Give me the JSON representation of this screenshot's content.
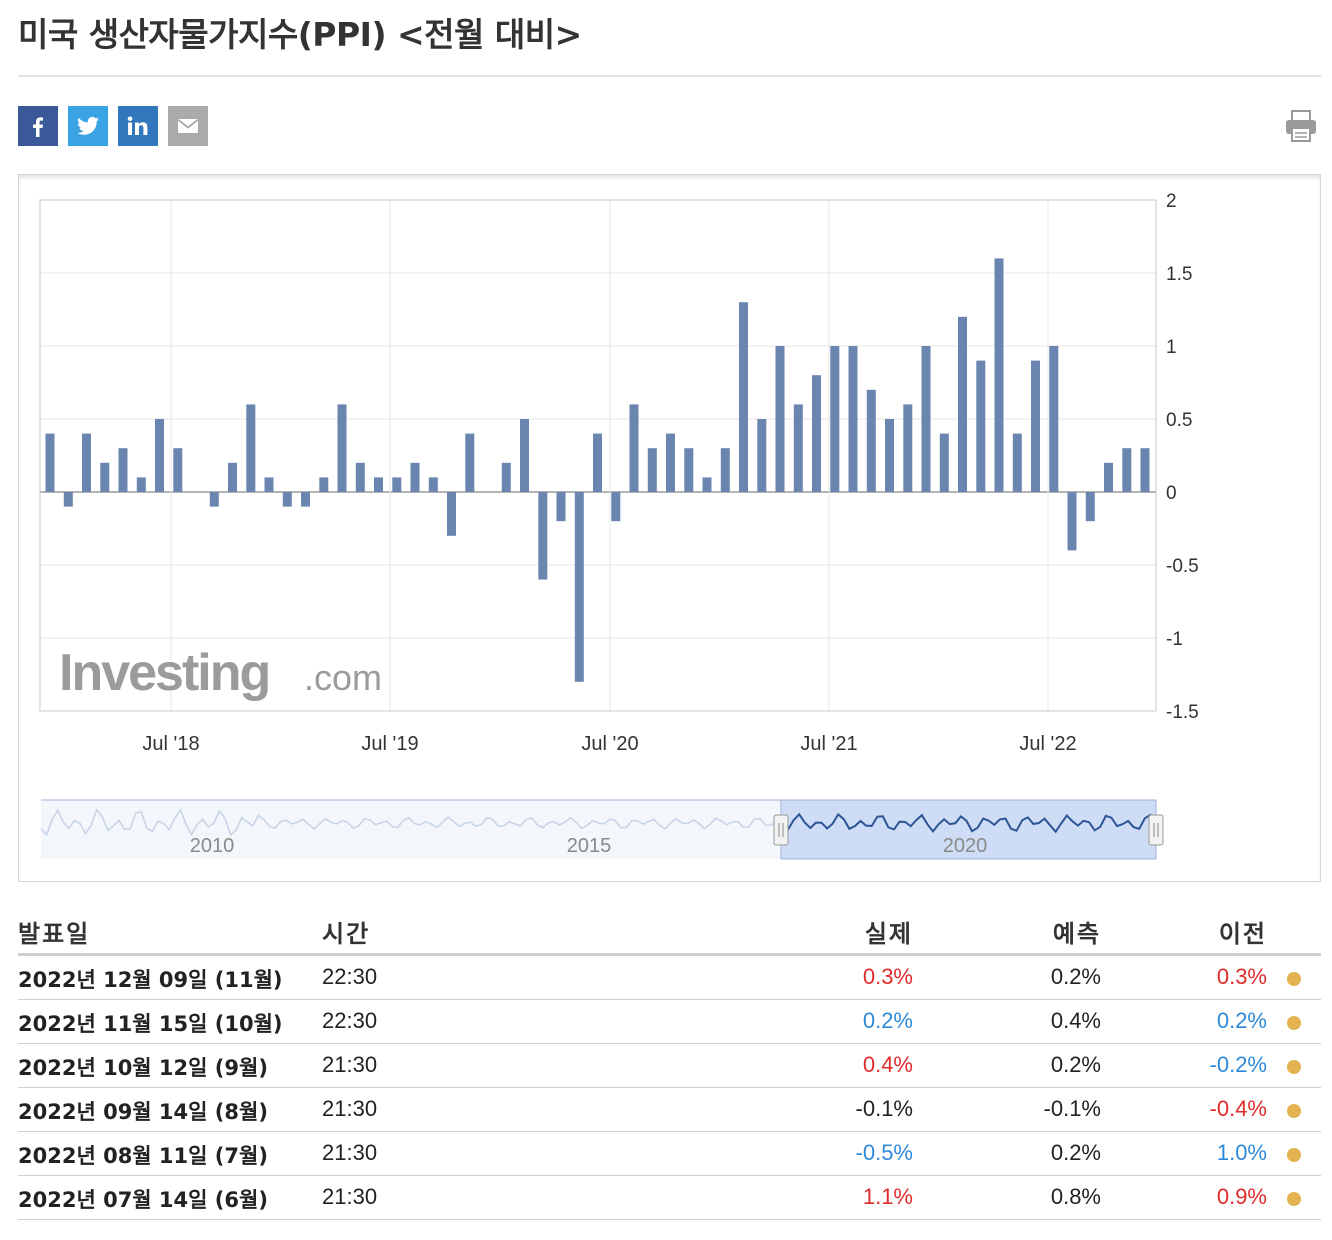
{
  "page": {
    "title": "미국 생산자물가지수(PPI) <전월 대비>"
  },
  "share": [
    {
      "name": "facebook",
      "glyph": "f",
      "color": "#3b5998",
      "icon": "facebook-icon"
    },
    {
      "name": "twitter",
      "glyph": "t",
      "color": "#3aa3e3",
      "icon": "twitter-icon"
    },
    {
      "name": "linkedin",
      "glyph": "in",
      "color": "#3277bc",
      "icon": "linkedin-icon"
    },
    {
      "name": "email",
      "glyph": "✉",
      "color": "#aaaaaa",
      "icon": "email-icon"
    }
  ],
  "print": {
    "icon": "printer-icon"
  },
  "chart": {
    "watermark": {
      "main": "Investing",
      "suffix": ".com"
    },
    "navigator_labels": [
      "2010",
      "2015",
      "2020"
    ]
  },
  "chart_data": {
    "type": "bar",
    "x_tick_labels": [
      "Jul '18",
      "Jul '19",
      "Jul '20",
      "Jul '21",
      "Jul '22"
    ],
    "y_tick_labels": [
      "2",
      "1.5",
      "1",
      "0.5",
      "0",
      "-0.5",
      "-1",
      "-1.5"
    ],
    "ylim": [
      -1.5,
      2
    ],
    "y_axis_position": "right",
    "grid": true,
    "bar_color": "#6a85af",
    "series": [
      {
        "values": [
          0.4,
          -0.1,
          0.4,
          0.2,
          0.3,
          0.1,
          0.5,
          0.3,
          0.0,
          -0.1,
          0.2,
          0.6,
          0.1,
          -0.1,
          -0.1,
          0.1,
          0.6,
          0.2,
          0.1,
          0.1,
          0.2,
          0.1,
          -0.3,
          0.4,
          0.0,
          0.2,
          0.5,
          -0.6,
          -0.2,
          -1.3,
          0.4,
          -0.2,
          0.6,
          0.3,
          0.4,
          0.3,
          0.1,
          0.3,
          1.3,
          0.5,
          1.0,
          0.6,
          0.8,
          1.0,
          1.0,
          0.7,
          0.5,
          0.6,
          1.0,
          0.4,
          1.2,
          0.9,
          1.6,
          0.4,
          0.9,
          1.0,
          -0.4,
          -0.2,
          0.2,
          0.3,
          0.3
        ]
      }
    ],
    "navigator": {
      "selected_range_labels": [
        "2020"
      ]
    }
  },
  "table": {
    "headers": {
      "date": "발표일",
      "time": "시간",
      "actual": "실제",
      "forecast": "예측",
      "previous": "이전"
    },
    "rows": [
      {
        "date": "2022년 12월 09일 (11월)",
        "time": "22:30",
        "actual": "0.3%",
        "actual_dir": "up",
        "forecast": "0.2%",
        "previous": "0.3%",
        "previous_dir": "up"
      },
      {
        "date": "2022년 11월 15일 (10월)",
        "time": "22:30",
        "actual": "0.2%",
        "actual_dir": "down",
        "forecast": "0.4%",
        "previous": "0.2%",
        "previous_dir": "down"
      },
      {
        "date": "2022년 10월 12일 (9월)",
        "time": "21:30",
        "actual": "0.4%",
        "actual_dir": "up",
        "forecast": "0.2%",
        "previous": "-0.2%",
        "previous_dir": "down"
      },
      {
        "date": "2022년 09월 14일 (8월)",
        "time": "21:30",
        "actual": "-0.1%",
        "actual_dir": "neutral",
        "forecast": "-0.1%",
        "previous": "-0.4%",
        "previous_dir": "up"
      },
      {
        "date": "2022년 08월 11일 (7월)",
        "time": "21:30",
        "actual": "-0.5%",
        "actual_dir": "down",
        "forecast": "0.2%",
        "previous": "1.0%",
        "previous_dir": "down"
      },
      {
        "date": "2022년 07월 14일 (6월)",
        "time": "21:30",
        "actual": "1.1%",
        "actual_dir": "up",
        "forecast": "0.8%",
        "previous": "0.9%",
        "previous_dir": "up"
      }
    ]
  }
}
